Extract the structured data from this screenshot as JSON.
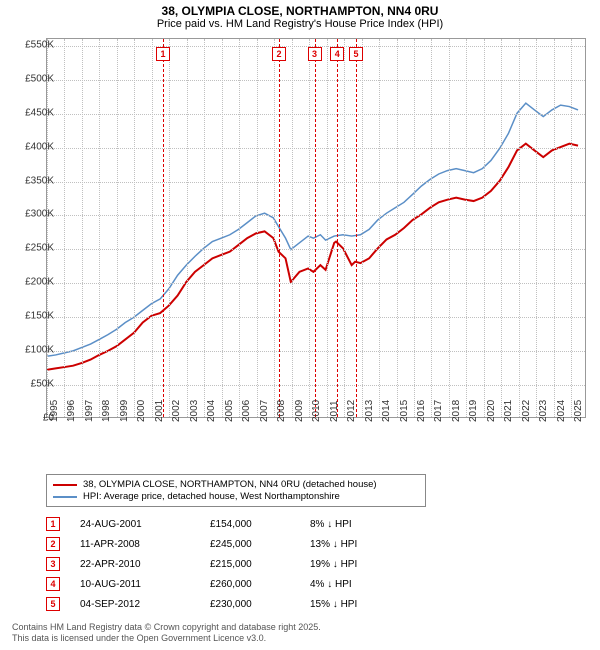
{
  "title": "38, OLYMPIA CLOSE, NORTHAMPTON, NN4 0RU",
  "subtitle": "Price paid vs. HM Land Registry's House Price Index (HPI)",
  "chart": {
    "type": "line",
    "background_color": "#ffffff",
    "grid_color": "#c0c0c0",
    "border_color": "#999999",
    "xlim": [
      1995,
      2025.9
    ],
    "ylim": [
      0,
      560000
    ],
    "yticks": [
      0,
      50000,
      100000,
      150000,
      200000,
      250000,
      300000,
      350000,
      400000,
      450000,
      500000,
      550000
    ],
    "ytick_labels": [
      "£0",
      "£50K",
      "£100K",
      "£150K",
      "£200K",
      "£250K",
      "£300K",
      "£350K",
      "£400K",
      "£450K",
      "£500K",
      "£550K"
    ],
    "xticks": [
      1995,
      1996,
      1997,
      1998,
      1999,
      2000,
      2001,
      2002,
      2003,
      2004,
      2005,
      2006,
      2007,
      2008,
      2009,
      2010,
      2011,
      2012,
      2013,
      2014,
      2015,
      2016,
      2017,
      2018,
      2019,
      2020,
      2021,
      2022,
      2023,
      2024,
      2025
    ],
    "label_fontsize": 10,
    "series": [
      {
        "name": "red",
        "color": "#cc0000",
        "width": 2,
        "points": [
          [
            1995,
            70000
          ],
          [
            1995.5,
            72000
          ],
          [
            1996,
            74000
          ],
          [
            1996.5,
            76000
          ],
          [
            1997,
            80000
          ],
          [
            1997.5,
            85000
          ],
          [
            1998,
            92000
          ],
          [
            1998.5,
            98000
          ],
          [
            1999,
            105000
          ],
          [
            1999.5,
            115000
          ],
          [
            2000,
            125000
          ],
          [
            2000.5,
            140000
          ],
          [
            2001,
            150000
          ],
          [
            2001.5,
            154000
          ],
          [
            2002,
            165000
          ],
          [
            2002.5,
            180000
          ],
          [
            2003,
            200000
          ],
          [
            2003.5,
            215000
          ],
          [
            2004,
            225000
          ],
          [
            2004.5,
            235000
          ],
          [
            2005,
            240000
          ],
          [
            2005.5,
            245000
          ],
          [
            2006,
            255000
          ],
          [
            2006.5,
            265000
          ],
          [
            2007,
            272000
          ],
          [
            2007.5,
            275000
          ],
          [
            2008,
            265000
          ],
          [
            2008.3,
            245000
          ],
          [
            2008.7,
            235000
          ],
          [
            2009,
            200000
          ],
          [
            2009.5,
            215000
          ],
          [
            2010,
            220000
          ],
          [
            2010.3,
            215000
          ],
          [
            2010.7,
            225000
          ],
          [
            2011,
            218000
          ],
          [
            2011.5,
            258000
          ],
          [
            2011.6,
            260000
          ],
          [
            2012,
            250000
          ],
          [
            2012.5,
            225000
          ],
          [
            2012.7,
            230000
          ],
          [
            2013,
            228000
          ],
          [
            2013.5,
            235000
          ],
          [
            2014,
            250000
          ],
          [
            2014.5,
            263000
          ],
          [
            2015,
            270000
          ],
          [
            2015.5,
            280000
          ],
          [
            2016,
            292000
          ],
          [
            2016.5,
            300000
          ],
          [
            2017,
            310000
          ],
          [
            2017.5,
            318000
          ],
          [
            2018,
            322000
          ],
          [
            2018.5,
            325000
          ],
          [
            2019,
            322000
          ],
          [
            2019.5,
            320000
          ],
          [
            2020,
            325000
          ],
          [
            2020.5,
            335000
          ],
          [
            2021,
            350000
          ],
          [
            2021.5,
            370000
          ],
          [
            2022,
            395000
          ],
          [
            2022.5,
            405000
          ],
          [
            2023,
            395000
          ],
          [
            2023.5,
            385000
          ],
          [
            2024,
            395000
          ],
          [
            2024.5,
            400000
          ],
          [
            2025,
            405000
          ],
          [
            2025.5,
            402000
          ]
        ]
      },
      {
        "name": "blue",
        "color": "#5b8fc7",
        "width": 1.5,
        "points": [
          [
            1995,
            90000
          ],
          [
            1995.5,
            92000
          ],
          [
            1996,
            95000
          ],
          [
            1996.5,
            98000
          ],
          [
            1997,
            103000
          ],
          [
            1997.5,
            108000
          ],
          [
            1998,
            115000
          ],
          [
            1998.5,
            122000
          ],
          [
            1999,
            130000
          ],
          [
            1999.5,
            140000
          ],
          [
            2000,
            148000
          ],
          [
            2000.5,
            158000
          ],
          [
            2001,
            168000
          ],
          [
            2001.5,
            175000
          ],
          [
            2002,
            190000
          ],
          [
            2002.5,
            210000
          ],
          [
            2003,
            225000
          ],
          [
            2003.5,
            238000
          ],
          [
            2004,
            250000
          ],
          [
            2004.5,
            260000
          ],
          [
            2005,
            265000
          ],
          [
            2005.5,
            270000
          ],
          [
            2006,
            278000
          ],
          [
            2006.5,
            288000
          ],
          [
            2007,
            298000
          ],
          [
            2007.5,
            302000
          ],
          [
            2008,
            295000
          ],
          [
            2008.3,
            282000
          ],
          [
            2008.7,
            265000
          ],
          [
            2009,
            248000
          ],
          [
            2009.5,
            258000
          ],
          [
            2010,
            268000
          ],
          [
            2010.3,
            265000
          ],
          [
            2010.7,
            270000
          ],
          [
            2011,
            262000
          ],
          [
            2011.5,
            268000
          ],
          [
            2012,
            270000
          ],
          [
            2012.5,
            268000
          ],
          [
            2013,
            270000
          ],
          [
            2013.5,
            278000
          ],
          [
            2014,
            292000
          ],
          [
            2014.5,
            302000
          ],
          [
            2015,
            310000
          ],
          [
            2015.5,
            318000
          ],
          [
            2016,
            330000
          ],
          [
            2016.5,
            342000
          ],
          [
            2017,
            352000
          ],
          [
            2017.5,
            360000
          ],
          [
            2018,
            365000
          ],
          [
            2018.5,
            368000
          ],
          [
            2019,
            365000
          ],
          [
            2019.5,
            362000
          ],
          [
            2020,
            368000
          ],
          [
            2020.5,
            380000
          ],
          [
            2021,
            398000
          ],
          [
            2021.5,
            420000
          ],
          [
            2022,
            450000
          ],
          [
            2022.5,
            465000
          ],
          [
            2023,
            455000
          ],
          [
            2023.5,
            445000
          ],
          [
            2024,
            455000
          ],
          [
            2024.5,
            462000
          ],
          [
            2025,
            460000
          ],
          [
            2025.5,
            455000
          ]
        ]
      }
    ],
    "markers": [
      {
        "n": "1",
        "x": 2001.64
      },
      {
        "n": "2",
        "x": 2008.28
      },
      {
        "n": "3",
        "x": 2010.31
      },
      {
        "n": "4",
        "x": 2011.61
      },
      {
        "n": "5",
        "x": 2012.68
      }
    ]
  },
  "legend": {
    "items": [
      {
        "color": "#cc0000",
        "label": "38, OLYMPIA CLOSE, NORTHAMPTON, NN4 0RU (detached house)"
      },
      {
        "color": "#5b8fc7",
        "label": "HPI: Average price, detached house, West Northamptonshire"
      }
    ]
  },
  "transactions": [
    {
      "n": "1",
      "date": "24-AUG-2001",
      "price": "£154,000",
      "delta": "8% ↓ HPI"
    },
    {
      "n": "2",
      "date": "11-APR-2008",
      "price": "£245,000",
      "delta": "13% ↓ HPI"
    },
    {
      "n": "3",
      "date": "22-APR-2010",
      "price": "£215,000",
      "delta": "19% ↓ HPI"
    },
    {
      "n": "4",
      "date": "10-AUG-2011",
      "price": "£260,000",
      "delta": "4% ↓ HPI"
    },
    {
      "n": "5",
      "date": "04-SEP-2012",
      "price": "£230,000",
      "delta": "15% ↓ HPI"
    }
  ],
  "footer_line1": "Contains HM Land Registry data © Crown copyright and database right 2025.",
  "footer_line2": "This data is licensed under the Open Government Licence v3.0."
}
